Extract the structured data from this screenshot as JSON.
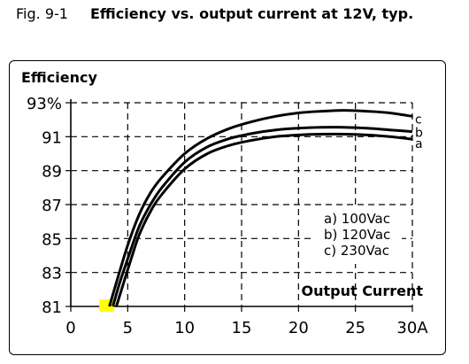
{
  "caption": {
    "number": "Fig. 9-1",
    "title": "Efficiency vs. output current at 12V, typ."
  },
  "chart_data": {
    "type": "line",
    "ylabel": "Efficiency",
    "xlabel": "Output Current",
    "xlim": [
      0,
      30
    ],
    "ylim": [
      81,
      93
    ],
    "x_ticks": [
      "0",
      "5",
      "10",
      "15",
      "20",
      "25",
      "30A"
    ],
    "y_ticks": [
      "81",
      "83",
      "85",
      "87",
      "89",
      "91",
      "93%"
    ],
    "grid": "dashed",
    "legend": [
      "a) 100Vac",
      "b) 120Vac",
      "c) 230Vac"
    ],
    "legend_position": "center-right",
    "highlight_color": "#ffff00",
    "series": [
      {
        "name": "c",
        "x": [
          3.4,
          4,
          5,
          6,
          7,
          8,
          10,
          12,
          14,
          16,
          18,
          20,
          22,
          24,
          26,
          28,
          30
        ],
        "y": [
          81,
          82.4,
          84.6,
          86.4,
          87.7,
          88.6,
          90.0,
          90.9,
          91.5,
          91.9,
          92.2,
          92.4,
          92.5,
          92.55,
          92.5,
          92.4,
          92.2
        ]
      },
      {
        "name": "b",
        "x": [
          3.7,
          4.3,
          5,
          6,
          7,
          8,
          10,
          12,
          14,
          16,
          18,
          20,
          22,
          24,
          26,
          28,
          30
        ],
        "y": [
          81,
          82.4,
          83.8,
          85.7,
          87.0,
          88.0,
          89.5,
          90.4,
          90.9,
          91.2,
          91.4,
          91.5,
          91.55,
          91.55,
          91.5,
          91.4,
          91.3
        ]
      },
      {
        "name": "a",
        "x": [
          4.0,
          4.6,
          5.3,
          6,
          7,
          8,
          10,
          12,
          14,
          16,
          18,
          20,
          22,
          24,
          26,
          28,
          30
        ],
        "y": [
          81,
          82.3,
          83.8,
          85.2,
          86.6,
          87.6,
          89.1,
          90.0,
          90.5,
          90.8,
          91.0,
          91.1,
          91.15,
          91.15,
          91.1,
          91.0,
          90.85
        ]
      }
    ]
  }
}
